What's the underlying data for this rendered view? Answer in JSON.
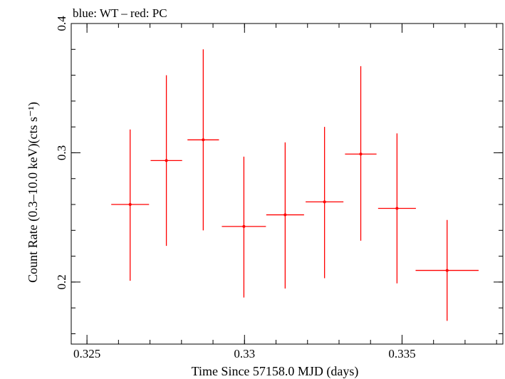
{
  "chart_data": {
    "type": "scatter",
    "title": "blue: WT – red: PC",
    "xlabel": "Time Since 57158.0 MJD (days)",
    "ylabel": "Count Rate (0.3–10.0 keV)(cts s⁻¹)",
    "xlim": [
      0.3245,
      0.3382
    ],
    "ylim": [
      0.152,
      0.4
    ],
    "x_ticks": [
      {
        "value": 0.325,
        "label": "0.325"
      },
      {
        "value": 0.33,
        "label": "0.33"
      },
      {
        "value": 0.335,
        "label": "0.335"
      }
    ],
    "y_ticks": [
      {
        "value": 0.2,
        "label": "0.2"
      },
      {
        "value": 0.3,
        "label": "0.3"
      },
      {
        "value": 0.4,
        "label": "0.4"
      }
    ],
    "x_minor_step": 0.001,
    "y_minor_step": 0.02,
    "grid": false,
    "series": [
      {
        "color": "#ff0000",
        "points": [
          {
            "x": 0.32637,
            "y": 0.26,
            "xerr": 0.0006,
            "ylo": 0.201,
            "yhi": 0.318
          },
          {
            "x": 0.32752,
            "y": 0.294,
            "xerr": 0.0005,
            "ylo": 0.228,
            "yhi": 0.36
          },
          {
            "x": 0.32869,
            "y": 0.31,
            "xerr": 0.0005,
            "ylo": 0.24,
            "yhi": 0.38
          },
          {
            "x": 0.32998,
            "y": 0.243,
            "xerr": 0.0007,
            "ylo": 0.188,
            "yhi": 0.297
          },
          {
            "x": 0.33129,
            "y": 0.252,
            "xerr": 0.0006,
            "ylo": 0.195,
            "yhi": 0.308
          },
          {
            "x": 0.33254,
            "y": 0.262,
            "xerr": 0.0006,
            "ylo": 0.203,
            "yhi": 0.32
          },
          {
            "x": 0.33369,
            "y": 0.299,
            "xerr": 0.0005,
            "ylo": 0.232,
            "yhi": 0.367
          },
          {
            "x": 0.33484,
            "y": 0.257,
            "xerr": 0.0006,
            "ylo": 0.199,
            "yhi": 0.315
          },
          {
            "x": 0.33643,
            "y": 0.209,
            "xerr": 0.001,
            "ylo": 0.17,
            "yhi": 0.248
          }
        ]
      }
    ]
  }
}
